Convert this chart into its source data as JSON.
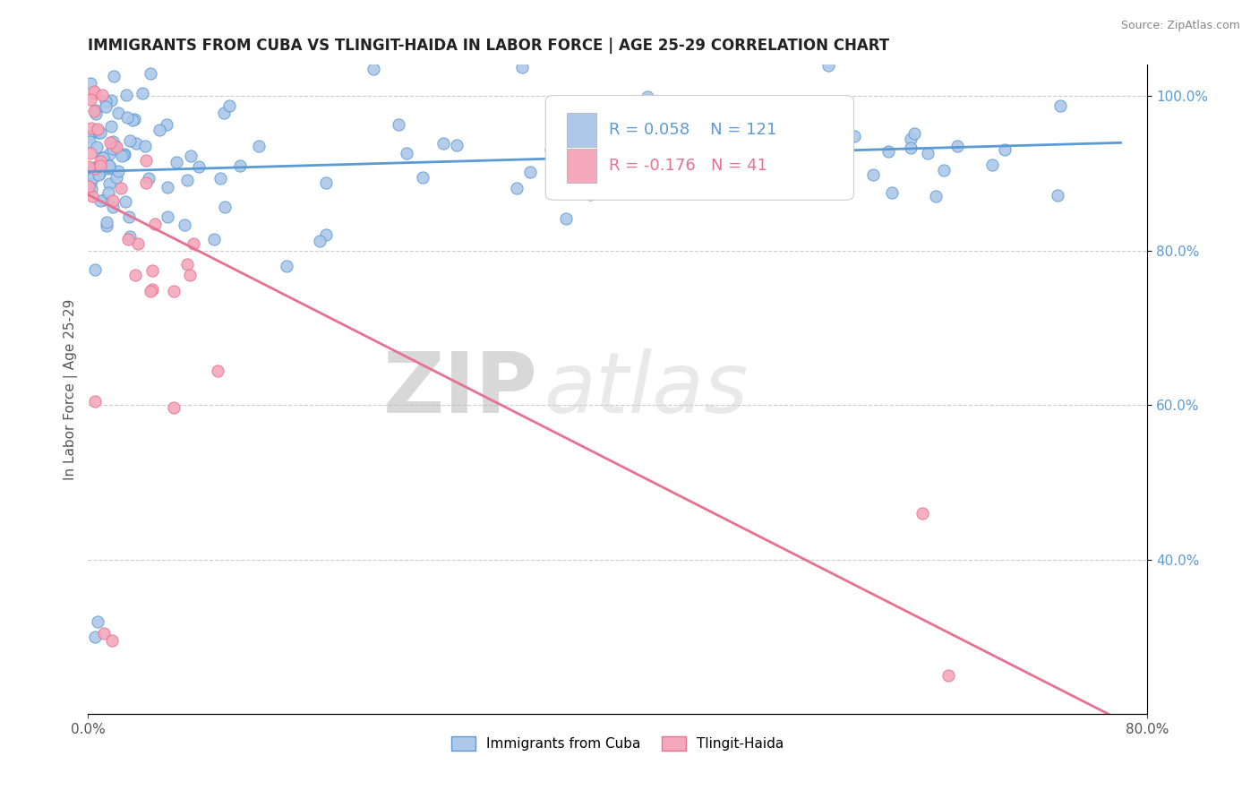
{
  "title": "IMMIGRANTS FROM CUBA VS TLINGIT-HAIDA IN LABOR FORCE | AGE 25-29 CORRELATION CHART",
  "source_text": "Source: ZipAtlas.com",
  "ylabel": "In Labor Force | Age 25-29",
  "xlim": [
    0.0,
    0.8
  ],
  "ylim": [
    0.2,
    1.04
  ],
  "cuba_R": 0.058,
  "cuba_N": 121,
  "tlingit_R": -0.176,
  "tlingit_N": 41,
  "cuba_color": "#adc8e8",
  "tlingit_color": "#f4a8bb",
  "cuba_line_color": "#5b9bd5",
  "tlingit_line_color": "#e87090",
  "legend_label_cuba": "Immigrants from Cuba",
  "legend_label_tlingit": "Tlingit-Haida",
  "watermark_zip": "ZIP",
  "watermark_atlas": "atlas",
  "background_color": "#ffffff",
  "grid_color": "#cccccc",
  "title_color": "#222222",
  "axis_label_color": "#555555",
  "source_color": "#888888",
  "legend_box_color": "#f0f0f0"
}
